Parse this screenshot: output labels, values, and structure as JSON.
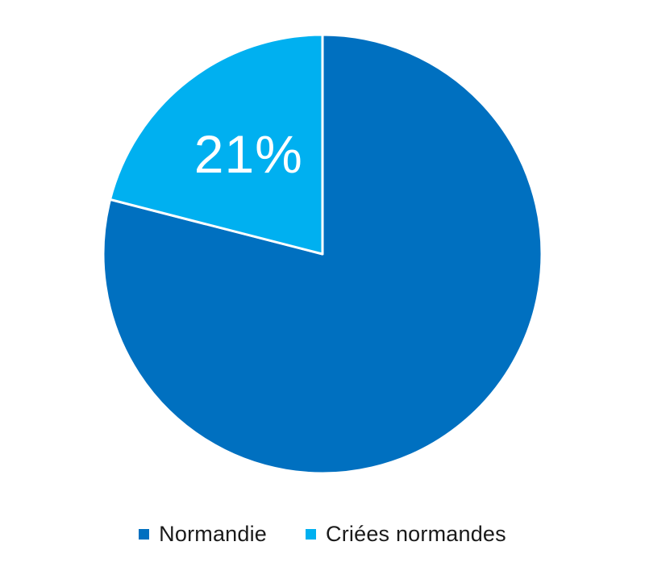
{
  "chart_data": {
    "type": "pie",
    "title": "",
    "slices": [
      {
        "label": "Normandie",
        "value": 79,
        "color": "#0070C0",
        "data_label": ""
      },
      {
        "label": "Criées normandes",
        "value": 21,
        "color": "#00B0F0",
        "data_label": "21%"
      }
    ],
    "legend_position": "bottom",
    "start": "top, clockwise from Normandie"
  },
  "legend": {
    "items": [
      {
        "label": "Normandie",
        "color": "#0070C0"
      },
      {
        "label": "Criées normandes",
        "color": "#00B0F0"
      }
    ]
  }
}
